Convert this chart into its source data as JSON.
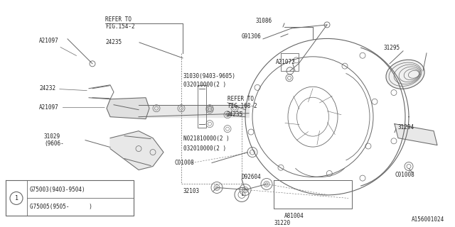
{
  "bg_color": "#ffffff",
  "line_color": "#666666",
  "text_color": "#222222",
  "diagram_id": "A156001024",
  "legend": {
    "circle_label": "1",
    "rows": [
      "G75003(9403-9504)",
      "G75005(9505-      )"
    ]
  }
}
